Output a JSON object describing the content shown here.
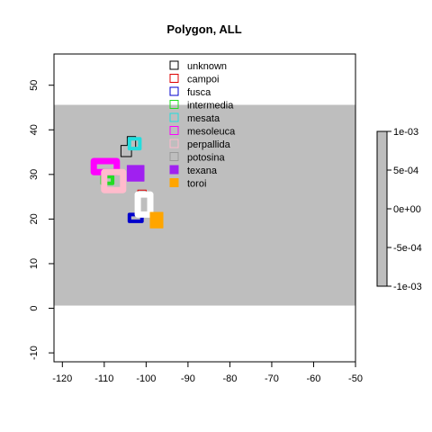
{
  "chart_data": {
    "type": "map",
    "title": "Polygon, ALL",
    "xlabel": "",
    "ylabel": "",
    "xlim": [
      -122,
      -50
    ],
    "ylim": [
      -12,
      57
    ],
    "x_ticks": [
      -120,
      -110,
      -100,
      -90,
      -80,
      -70,
      -60,
      -50
    ],
    "x_tick_labels": [
      "-120",
      "-110",
      "-100",
      "-90",
      "-80",
      "-70",
      "-60",
      "-50"
    ],
    "y_ticks": [
      -10,
      0,
      10,
      20,
      30,
      40,
      50
    ],
    "y_tick_labels": [
      "-10",
      "0",
      "10",
      "20",
      "30",
      "40",
      "50"
    ],
    "raster": {
      "xmin": -122,
      "xmax": -50,
      "ymin": 0.6,
      "ymax": 45.6,
      "value": 0,
      "color": "#bebebe"
    },
    "colorbar": {
      "ticks": [
        0.001,
        0.0005,
        0,
        -0.0005,
        -0.001
      ],
      "tick_labels": [
        "1e-03",
        "5e-04",
        "0e+00",
        "-5e-04",
        "-1e-03"
      ],
      "color": "#bebebe"
    },
    "legend_position": "top-center",
    "series": [
      {
        "name": "unknown",
        "color": "#000000",
        "lw": 1,
        "fill": false,
        "outline": [
          [
            -106,
            34
          ],
          [
            -106,
            36.5
          ],
          [
            -104.5,
            36.5
          ],
          [
            -104.5,
            38.5
          ],
          [
            -102.5,
            38.5
          ],
          [
            -102.5,
            36
          ],
          [
            -103.5,
            36
          ],
          [
            -103.5,
            34
          ]
        ]
      },
      {
        "name": "campoi",
        "color": "#dd0000",
        "lw": 1,
        "fill": false,
        "outline": [
          [
            -102,
            25
          ],
          [
            -102,
            26.5
          ],
          [
            -100,
            26.5
          ],
          [
            -100,
            25
          ]
        ]
      },
      {
        "name": "fusca",
        "color": "#0000cc",
        "lw": 4,
        "fill": false,
        "outline": [
          [
            -104,
            19.5
          ],
          [
            -104,
            21
          ],
          [
            -101,
            21
          ],
          [
            -101,
            19.5
          ]
        ]
      },
      {
        "name": "intermedia",
        "color": "#22dd22",
        "lw": 4,
        "fill": false,
        "outline": [
          [
            -110.5,
            28
          ],
          [
            -110.5,
            29.5
          ],
          [
            -108,
            29.5
          ],
          [
            -108,
            28
          ]
        ]
      },
      {
        "name": "mesata",
        "color": "#22dddd",
        "lw": 4,
        "fill": false,
        "outline": [
          [
            -104,
            35.8
          ],
          [
            -104,
            38
          ],
          [
            -101.5,
            38
          ],
          [
            -101.5,
            35.8
          ]
        ]
      },
      {
        "name": "mesoleuca",
        "color": "#ff00ff",
        "lw": 7,
        "fill": false,
        "outline": [
          [
            -112.5,
            30.5
          ],
          [
            -112.5,
            33
          ],
          [
            -107,
            33
          ],
          [
            -107,
            30.5
          ]
        ]
      },
      {
        "name": "perpallida",
        "color": "#ffbbcc",
        "lw": 7,
        "fill": false,
        "outline": [
          [
            -110,
            26.5
          ],
          [
            -110,
            30.5
          ],
          [
            -105.5,
            30.5
          ],
          [
            -105.5,
            26.5
          ]
        ]
      },
      {
        "name": "potosina",
        "color": "#ffffff",
        "lw": 7,
        "fill": false,
        "outline": [
          [
            -102,
            21
          ],
          [
            -102,
            25.5
          ],
          [
            -99,
            25.5
          ],
          [
            -99,
            21
          ]
        ]
      },
      {
        "name": "texana",
        "color": "#a020f0",
        "lw": 1,
        "fill": true,
        "outline": [
          [
            -104.5,
            28.5
          ],
          [
            -104.5,
            32
          ],
          [
            -100.5,
            32
          ],
          [
            -100.5,
            28.5
          ]
        ]
      },
      {
        "name": "toroi",
        "color": "#ffa500",
        "lw": 1,
        "fill": true,
        "outline": [
          [
            -99,
            18
          ],
          [
            -99,
            21.5
          ],
          [
            -96,
            21.5
          ],
          [
            -96,
            18
          ]
        ]
      }
    ]
  }
}
